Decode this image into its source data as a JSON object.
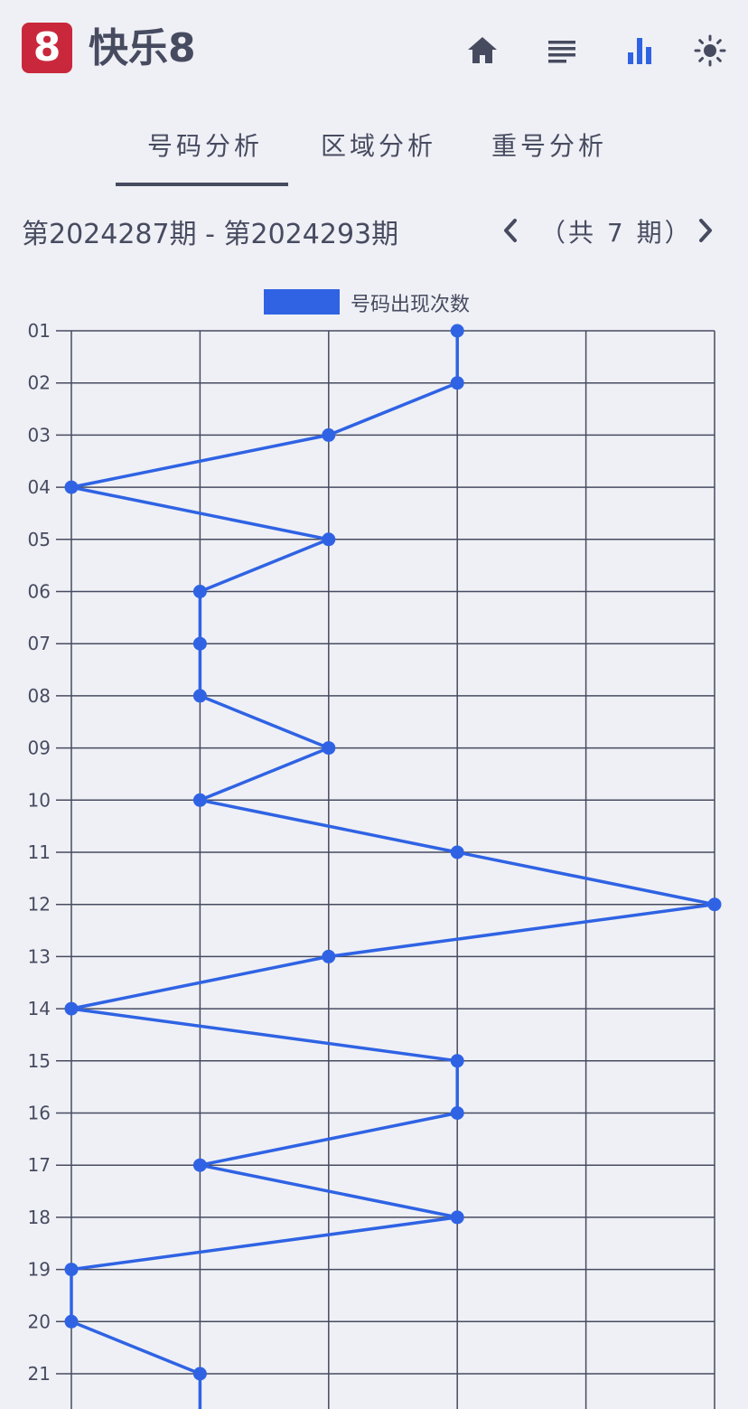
{
  "header": {
    "logo_text": "8",
    "title": "快乐8",
    "icons": [
      "home-icon",
      "list-icon",
      "bar-chart-icon",
      "brightness-icon"
    ],
    "active_icon_color": "#2f63e4",
    "icon_color": "#474b60"
  },
  "tabs": [
    {
      "label": "号码分析",
      "active": true
    },
    {
      "label": "区域分析",
      "active": false
    },
    {
      "label": "重号分析",
      "active": false
    }
  ],
  "period": {
    "range": "第2024287期 - 第2024293期",
    "count_text": "（共 7 期）"
  },
  "chart_data": {
    "type": "line",
    "orientation": "horizontal",
    "legend": [
      "号码出现次数"
    ],
    "series": [
      {
        "name": "号码出现次数",
        "color": "#2f63e4",
        "categories": [
          "01",
          "02",
          "03",
          "04",
          "05",
          "06",
          "07",
          "08",
          "09",
          "10",
          "11",
          "12",
          "13",
          "14",
          "15",
          "16",
          "17",
          "18",
          "19",
          "20",
          "21"
        ],
        "values": [
          3,
          3,
          2,
          0,
          2,
          1,
          1,
          1,
          2,
          1,
          3,
          5,
          2,
          0,
          3,
          3,
          1,
          3,
          0,
          0,
          1
        ]
      }
    ],
    "xlim": [
      0,
      5
    ],
    "grid": true
  }
}
